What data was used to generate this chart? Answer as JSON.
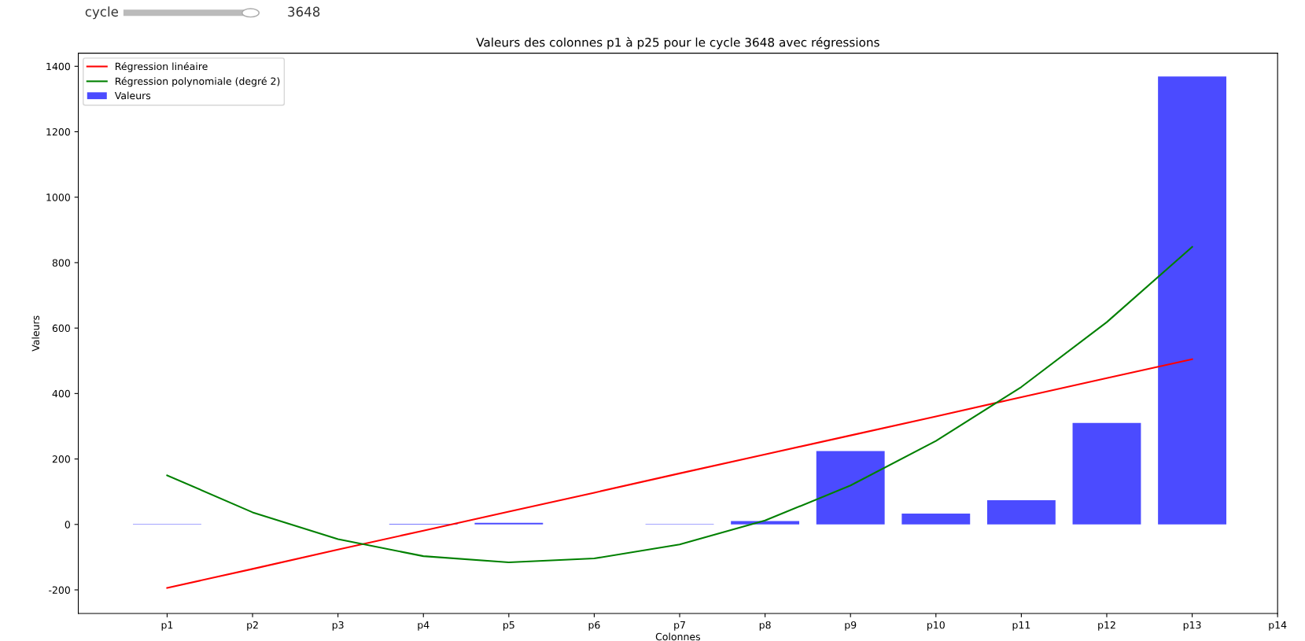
{
  "chart_data": {
    "type": "bar",
    "title": "Valeurs des colonnes p1 à p25 pour le cycle 3648 avec régressions",
    "xlabel": "Colonnes",
    "ylabel": "Valeurs",
    "annotations": [
      "cycle",
      "3648"
    ],
    "categories": [
      "p1",
      "p2",
      "p3",
      "p4",
      "p5",
      "p6",
      "p7",
      "p8",
      "p9",
      "p10",
      "p11",
      "p12",
      "p13",
      "p14"
    ],
    "series": [
      {
        "name": "Régression linéaire",
        "type": "line",
        "color": "#ff0000",
        "values": [
          -194,
          -136,
          -77,
          -19,
          39,
          97,
          156,
          214,
          272,
          330,
          389,
          447,
          505,
          null
        ]
      },
      {
        "name": "Régression polynomiale (degré 2)",
        "type": "line",
        "color": "#008000",
        "values": [
          150,
          37,
          -45,
          -97,
          -116,
          -104,
          -61,
          12,
          119,
          255,
          420,
          618,
          848,
          null
        ]
      },
      {
        "name": "Valeurs",
        "color": "#4b4bff",
        "values": [
          1,
          0,
          0,
          2,
          5,
          0,
          1,
          10,
          224,
          33,
          74,
          310,
          1369,
          null
        ]
      }
    ],
    "ylim": [
      -272,
      1440
    ],
    "yticks": [
      -200,
      0,
      200,
      400,
      600,
      800,
      1000,
      1200,
      1400
    ],
    "grid": false,
    "legend": "top left"
  }
}
